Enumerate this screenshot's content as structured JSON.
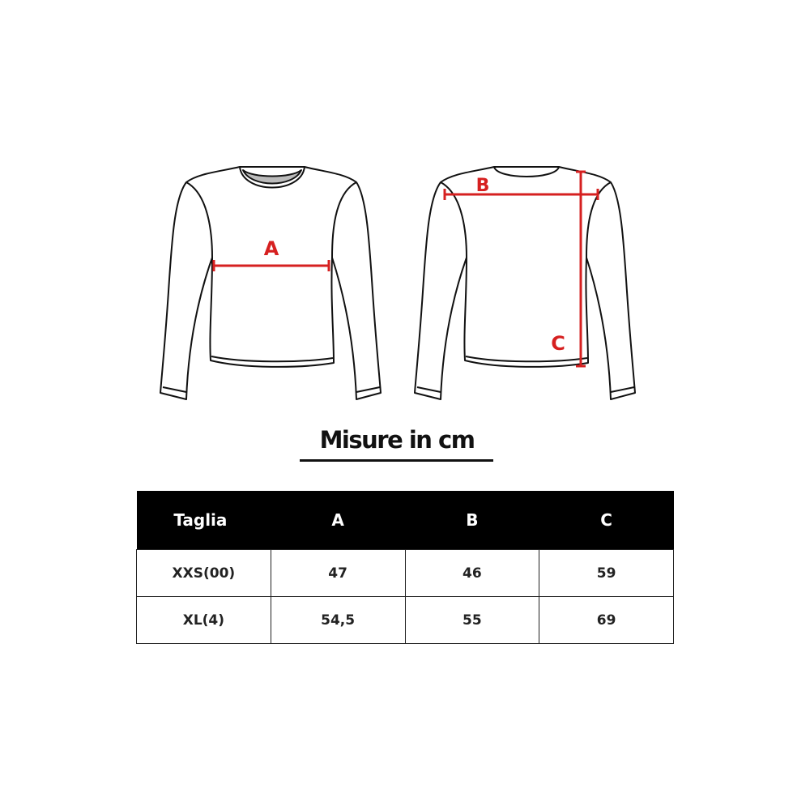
{
  "diagram": {
    "front_label": "A",
    "back_labels": [
      "B",
      "C"
    ],
    "measure_color": "#d62020"
  },
  "title": "Misure in cm",
  "table": {
    "headers": [
      "Taglia",
      "A",
      "B",
      "C"
    ],
    "rows": [
      [
        "XXS(00)",
        "47",
        "46",
        "59"
      ],
      [
        "XL(4)",
        "54,5",
        "55",
        "69"
      ]
    ]
  }
}
